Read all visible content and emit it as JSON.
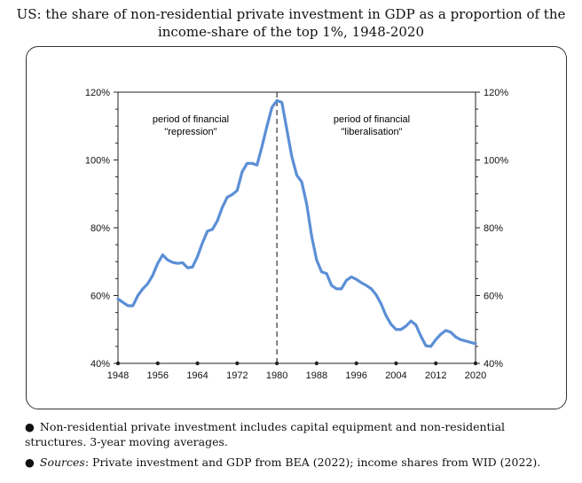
{
  "title_line1": "US: the share of non-residential private investment in GDP as a proportion of the",
  "title_line2": "income-share of the top 1%, 1948-2020",
  "annotations": {
    "left_line1": "period of financial",
    "left_line2": "\"repression\"",
    "right_line1": "period of financial",
    "right_line2": "\"liberalisation\""
  },
  "notes": {
    "note1": "Non-residential private investment includes capital equipment and non-residential structures.  3-year moving averages.",
    "note2_label": "Sources",
    "note2_text": ": Private investment and GDP from BEA (2022); income shares from WID (2022)."
  },
  "colors": {
    "line": "#5b8fd6",
    "axis": "#222222"
  },
  "chart_data": {
    "type": "line",
    "title": "US: the share of non-residential private investment in GDP as a proportion of the income-share of the top 1%, 1948-2020",
    "xlim": [
      1948,
      2020
    ],
    "ylim": [
      40,
      120
    ],
    "x_ticks": [
      "1948",
      "1956",
      "1964",
      "1972",
      "1980",
      "1988",
      "1996",
      "2004",
      "2012",
      "2020"
    ],
    "y_ticks_left": [
      "40%",
      "60%",
      "80%",
      "100%",
      "120%"
    ],
    "y_ticks_right": [
      "40%",
      "60%",
      "80%",
      "100%",
      "120%"
    ],
    "vertical_marker_year": 1980,
    "series": [
      {
        "x": [
          1948,
          1949,
          1950,
          1951,
          1952,
          1953,
          1954,
          1955,
          1956,
          1957,
          1958,
          1959,
          1960,
          1961,
          1962,
          1963,
          1964,
          1965,
          1966,
          1967,
          1968,
          1969,
          1970,
          1971,
          1972,
          1973,
          1974,
          1975,
          1976,
          1977,
          1978,
          1979,
          1980,
          1981,
          1982,
          1983,
          1984,
          1985,
          1986,
          1987,
          1988,
          1989,
          1990,
          1991,
          1992,
          1993,
          1994,
          1995,
          1996,
          1997,
          1998,
          1999,
          2000,
          2001,
          2002,
          2003,
          2004,
          2005,
          2006,
          2007,
          2008,
          2009,
          2010,
          2011,
          2012,
          2013,
          2014,
          2015,
          2016,
          2017,
          2018,
          2019,
          2020
        ],
        "values": [
          59,
          58,
          57,
          57,
          60,
          62,
          63.5,
          66,
          69.5,
          72,
          70.5,
          69.8,
          69.5,
          69.7,
          68.2,
          68.4,
          71.5,
          75.5,
          79,
          79.5,
          82,
          86,
          89,
          89.8,
          91,
          96.5,
          99,
          99,
          98.5,
          104,
          110,
          115.5,
          117.5,
          117,
          109,
          101,
          95.5,
          93.5,
          87,
          77.5,
          70.5,
          67,
          66.5,
          63,
          62,
          62,
          64.5,
          65.5,
          64.8,
          63.8,
          63,
          62,
          60.2,
          57.5,
          54,
          51.5,
          50,
          50,
          51,
          52.5,
          51.3,
          48,
          45.2,
          45,
          47,
          48.6,
          49.7,
          49.2,
          47.8,
          47,
          46.6,
          46.2,
          45.8
        ]
      }
    ]
  }
}
